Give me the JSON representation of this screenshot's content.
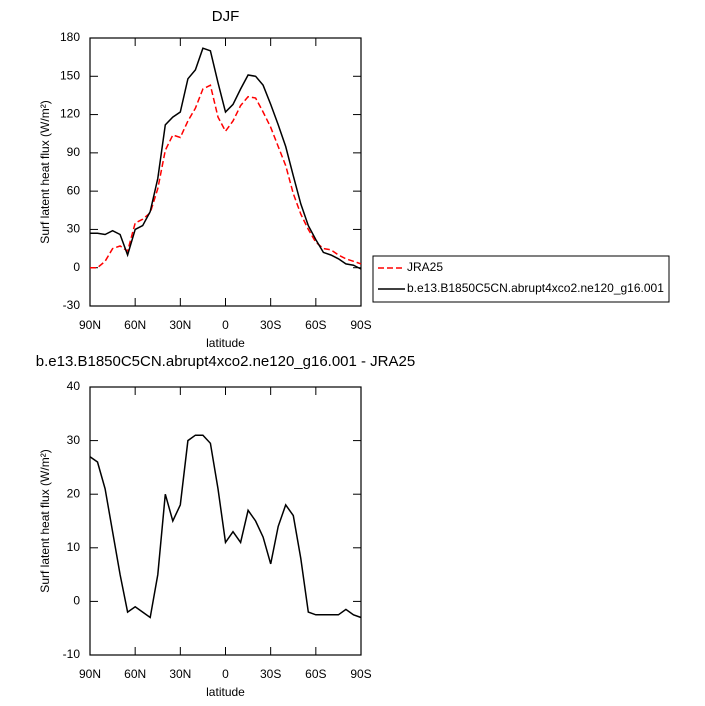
{
  "chart_data": [
    {
      "type": "line",
      "title": "DJF",
      "xlabel": "latitude",
      "ylabel": "Surf latent heat flux (W/m²)",
      "x": [
        90,
        85,
        80,
        75,
        70,
        65,
        60,
        55,
        50,
        45,
        40,
        35,
        30,
        25,
        20,
        15,
        10,
        5,
        0,
        -5,
        -10,
        -15,
        -20,
        -25,
        -30,
        -35,
        -40,
        -45,
        -50,
        -55,
        -60,
        -65,
        -70,
        -75,
        -80,
        -85,
        -90
      ],
      "series": [
        {
          "name": "JRA25",
          "color": "#ff0000",
          "dashed": true,
          "values": [
            0,
            0,
            5,
            15,
            17,
            13,
            35,
            38,
            43,
            62,
            92,
            104,
            102,
            115,
            125,
            140,
            143,
            118,
            107,
            115,
            127,
            134,
            133,
            122,
            110,
            95,
            80,
            58,
            42,
            30,
            20,
            15,
            14,
            10,
            7,
            5,
            3
          ]
        },
        {
          "name": "b.e13.B1850C5CN.abrupt4xco2.ne120_g16.001",
          "color": "#000000",
          "dashed": false,
          "values": [
            27,
            27,
            26,
            29,
            26,
            10,
            30,
            33,
            44,
            70,
            112,
            118,
            122,
            148,
            155,
            172,
            170,
            145,
            122,
            128,
            140,
            151,
            150,
            143,
            128,
            112,
            95,
            72,
            50,
            33,
            22,
            12,
            10,
            7,
            3,
            2,
            -1
          ]
        }
      ],
      "legend": "right",
      "xlim": [
        90,
        -90
      ],
      "xticks": [
        {
          "value": 90,
          "label": "90N"
        },
        {
          "value": 60,
          "label": "60N"
        },
        {
          "value": 30,
          "label": "30N"
        },
        0,
        {
          "value": -30,
          "label": "30S"
        },
        {
          "value": -60,
          "label": "60S"
        },
        {
          "value": -90,
          "label": "90S"
        }
      ],
      "ylim": [
        -30,
        180
      ],
      "yticks": [
        -30,
        0,
        30,
        60,
        90,
        120,
        150,
        180
      ]
    },
    {
      "type": "line",
      "title": "b.e13.B1850C5CN.abrupt4xco2.ne120_g16.001 - JRA25",
      "xlabel": "latitude",
      "ylabel": "Surf latent heat flux (W/m²)",
      "x": [
        90,
        85,
        80,
        75,
        70,
        65,
        60,
        55,
        50,
        45,
        40,
        35,
        30,
        25,
        20,
        15,
        10,
        5,
        0,
        -5,
        -10,
        -15,
        -20,
        -25,
        -30,
        -35,
        -40,
        -45,
        -50,
        -55,
        -60,
        -65,
        -70,
        -75,
        -80,
        -85,
        -90
      ],
      "color": "#000000",
      "values": [
        27,
        26,
        21,
        13,
        5,
        -2,
        -1,
        -2,
        -3,
        5,
        20,
        15,
        18,
        30,
        31,
        31,
        29.5,
        21,
        11,
        13,
        11,
        17,
        15,
        12,
        7,
        14,
        18,
        16,
        8,
        -2,
        -2.5,
        -2.5,
        -2.5,
        -2.5,
        -1.5,
        -2.5,
        -3
      ],
      "xlim": [
        90,
        -90
      ],
      "xticks": [
        {
          "value": 90,
          "label": "90N"
        },
        {
          "value": 60,
          "label": "60N"
        },
        {
          "value": 30,
          "label": "30N"
        },
        0,
        {
          "value": -30,
          "label": "30S"
        },
        {
          "value": -60,
          "label": "60S"
        },
        {
          "value": -90,
          "label": "90S"
        }
      ],
      "ylim": [
        -10,
        40
      ],
      "yticks": [
        -10,
        0,
        10,
        20,
        30,
        40
      ]
    }
  ]
}
